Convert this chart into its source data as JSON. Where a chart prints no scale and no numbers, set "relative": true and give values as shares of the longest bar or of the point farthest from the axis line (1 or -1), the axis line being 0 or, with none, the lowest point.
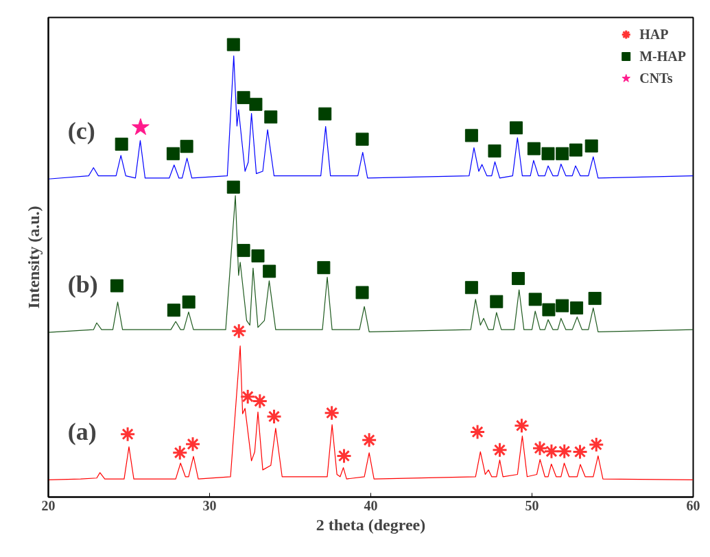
{
  "chart_data": {
    "type": "line",
    "relative": true,
    "xlabel": "2 theta (degree)",
    "ylabel": "Intensity (a.u.)",
    "xlim": [
      20,
      60
    ],
    "xticks": [
      20,
      30,
      40,
      50,
      60
    ],
    "grid": false,
    "legend": "top right",
    "tick_labels": "x",
    "annotations": [
      "(a)",
      "(b)",
      "(c)"
    ],
    "series": [
      {
        "marker": "none",
        "color": "#ff0000",
        "x": [
          20,
          22,
          23.0,
          23.2,
          23.5,
          24.7,
          25.0,
          25.3,
          27.9,
          28.2,
          28.5,
          28.7,
          29.0,
          29.3,
          31.3,
          31.9,
          32.05,
          32.2,
          32.6,
          32.8,
          33.0,
          33.3,
          33.8,
          34.1,
          34.5,
          37.3,
          37.6,
          37.9,
          38.1,
          38.3,
          38.5,
          39.6,
          39.9,
          40.2,
          46.5,
          46.8,
          47.1,
          47.3,
          47.5,
          47.8,
          48.0,
          48.2,
          49.1,
          49.4,
          49.7,
          50.3,
          50.5,
          50.8,
          51.0,
          51.2,
          51.5,
          51.8,
          52.0,
          52.3,
          52.8,
          53.0,
          53.3,
          53.8,
          54.1,
          54.4,
          60
        ],
        "values": [
          0.038,
          0.04,
          0.042,
          0.054,
          0.04,
          0.04,
          0.111,
          0.04,
          0.04,
          0.075,
          0.045,
          0.045,
          0.09,
          0.04,
          0.045,
          0.334,
          0.184,
          0.196,
          0.08,
          0.1,
          0.188,
          0.06,
          0.07,
          0.152,
          0.045,
          0.045,
          0.16,
          0.05,
          0.045,
          0.065,
          0.04,
          0.045,
          0.098,
          0.04,
          0.045,
          0.1,
          0.05,
          0.06,
          0.045,
          0.045,
          0.082,
          0.045,
          0.05,
          0.135,
          0.045,
          0.05,
          0.083,
          0.045,
          0.045,
          0.073,
          0.045,
          0.045,
          0.075,
          0.045,
          0.045,
          0.072,
          0.045,
          0.045,
          0.091,
          0.04,
          0.038
        ]
      },
      {
        "marker": "none",
        "color": "#1e5a1e",
        "x": [
          20,
          22.8,
          23.0,
          23.3,
          24.0,
          24.3,
          24.6,
          27.6,
          27.9,
          28.2,
          28.4,
          28.7,
          29.0,
          31.0,
          31.6,
          31.8,
          31.9,
          32.3,
          32.5,
          32.7,
          33.0,
          33.4,
          33.7,
          34.1,
          37.0,
          37.3,
          37.6,
          39.3,
          39.6,
          39.9,
          46.2,
          46.5,
          46.8,
          47.0,
          47.3,
          47.6,
          47.8,
          48.1,
          48.9,
          49.2,
          49.5,
          50.0,
          50.2,
          50.5,
          50.8,
          51.0,
          51.3,
          51.6,
          51.8,
          52.1,
          52.5,
          52.8,
          53.1,
          53.5,
          53.8,
          54.1,
          60
        ],
        "values": [
          0.364,
          0.37,
          0.385,
          0.37,
          0.37,
          0.431,
          0.37,
          0.37,
          0.388,
          0.37,
          0.37,
          0.409,
          0.37,
          0.37,
          0.666,
          0.49,
          0.519,
          0.39,
          0.38,
          0.506,
          0.375,
          0.39,
          0.478,
          0.37,
          0.37,
          0.486,
          0.37,
          0.37,
          0.421,
          0.365,
          0.37,
          0.437,
          0.38,
          0.395,
          0.37,
          0.37,
          0.408,
          0.37,
          0.37,
          0.458,
          0.37,
          0.37,
          0.411,
          0.37,
          0.37,
          0.392,
          0.37,
          0.37,
          0.395,
          0.37,
          0.37,
          0.398,
          0.37,
          0.37,
          0.418,
          0.365,
          0.37
        ]
      },
      {
        "marker": "none",
        "color": "#0000ff",
        "x": [
          20,
          22.5,
          22.8,
          23.1,
          24.2,
          24.5,
          24.8,
          25.4,
          25.7,
          26.0,
          27.5,
          27.8,
          28.1,
          28.3,
          28.6,
          28.9,
          31.1,
          31.5,
          31.7,
          31.8,
          32.2,
          32.4,
          32.6,
          32.9,
          33.3,
          33.6,
          34.0,
          36.9,
          37.2,
          37.5,
          39.2,
          39.5,
          39.8,
          46.1,
          46.4,
          46.7,
          46.9,
          47.2,
          47.5,
          47.7,
          48.0,
          48.8,
          49.1,
          49.4,
          49.9,
          50.1,
          50.4,
          50.8,
          51.0,
          51.3,
          51.6,
          51.8,
          52.1,
          52.5,
          52.7,
          53.0,
          53.5,
          53.8,
          54.1,
          60
        ],
        "values": [
          0.703,
          0.71,
          0.728,
          0.71,
          0.71,
          0.755,
          0.71,
          0.705,
          0.788,
          0.705,
          0.705,
          0.734,
          0.705,
          0.705,
          0.749,
          0.705,
          0.71,
          0.975,
          0.82,
          0.856,
          0.72,
          0.74,
          0.848,
          0.715,
          0.72,
          0.812,
          0.71,
          0.71,
          0.819,
          0.71,
          0.71,
          0.762,
          0.705,
          0.71,
          0.772,
          0.72,
          0.735,
          0.71,
          0.71,
          0.741,
          0.705,
          0.71,
          0.794,
          0.71,
          0.71,
          0.744,
          0.71,
          0.71,
          0.732,
          0.71,
          0.71,
          0.736,
          0.71,
          0.71,
          0.732,
          0.71,
          0.71,
          0.752,
          0.705,
          0.71
        ]
      },
      {
        "type": "scatter",
        "name": "HAP",
        "marker": "cross",
        "color": "#ff3333",
        "x": [
          24.92,
          28.16,
          28.96,
          31.82,
          32.37,
          33.12,
          34.0,
          37.58,
          38.34,
          39.9,
          46.62,
          48.0,
          49.36,
          50.49,
          51.21,
          52.01,
          52.98,
          53.99
        ],
        "values": [
          0.139,
          0.098,
          0.117,
          0.367,
          0.222,
          0.212,
          0.178,
          0.186,
          0.091,
          0.126,
          0.144,
          0.104,
          0.158,
          0.108,
          0.101,
          0.101,
          0.1,
          0.116
        ]
      },
      {
        "type": "scatter",
        "name": "M-HAP",
        "marker": "square",
        "color": "#004000",
        "x": [
          24.25,
          27.78,
          28.71,
          31.48,
          32.11,
          33.0,
          33.71,
          37.08,
          39.47,
          46.25,
          47.8,
          49.15,
          50.2,
          51.04,
          51.88,
          52.77,
          53.9,
          24.54,
          27.74,
          28.58,
          31.48,
          32.11,
          32.87,
          33.8,
          37.16,
          39.47,
          46.25,
          47.68,
          49.02,
          50.12,
          51.0,
          51.88,
          52.72,
          53.69
        ],
        "values": [
          0.467,
          0.413,
          0.431,
          0.685,
          0.545,
          0.533,
          0.499,
          0.507,
          0.452,
          0.463,
          0.432,
          0.483,
          0.437,
          0.414,
          0.423,
          0.418,
          0.439,
          0.78,
          0.759,
          0.775,
          1.0,
          0.883,
          0.868,
          0.84,
          0.847,
          0.791,
          0.799,
          0.765,
          0.816,
          0.77,
          0.759,
          0.759,
          0.767,
          0.776
        ]
      },
      {
        "type": "scatter",
        "name": "CNTs",
        "marker": "star",
        "color": "#ff1a8c",
        "x": [
          25.72
        ],
        "values": [
          0.817
        ]
      }
    ]
  }
}
